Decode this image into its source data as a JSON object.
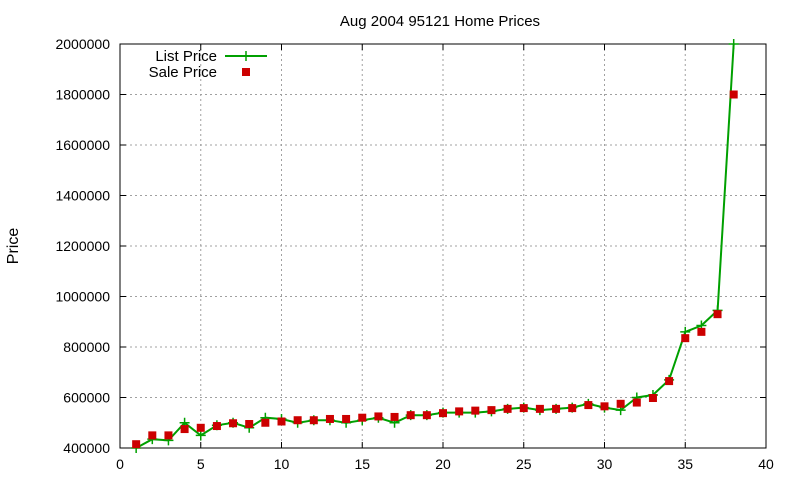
{
  "chart_data": {
    "type": "line",
    "title": "Aug 2004 95121 Home Prices",
    "xlabel": "",
    "ylabel": "Price",
    "xlim": [
      0,
      40
    ],
    "ylim": [
      400000,
      2000000
    ],
    "xticks": [
      0,
      5,
      10,
      15,
      20,
      25,
      30,
      35,
      40
    ],
    "yticks": [
      400000,
      600000,
      800000,
      1000000,
      1200000,
      1400000,
      1600000,
      1800000,
      2000000
    ],
    "grid": true,
    "legend_position": "top-left",
    "series": [
      {
        "name": "List Price",
        "style": "line-points",
        "marker": "plus",
        "color": "#00a000",
        "x": [
          1,
          2,
          3,
          4,
          5,
          6,
          7,
          8,
          9,
          10,
          11,
          12,
          13,
          14,
          15,
          16,
          17,
          18,
          19,
          20,
          21,
          22,
          23,
          24,
          25,
          26,
          27,
          28,
          29,
          30,
          31,
          32,
          33,
          34,
          35,
          36,
          37,
          38
        ],
        "values": [
          400000,
          435000,
          430000,
          500000,
          450000,
          490000,
          500000,
          480000,
          520000,
          515000,
          500000,
          510000,
          510000,
          500000,
          510000,
          520000,
          500000,
          530000,
          530000,
          540000,
          540000,
          540000,
          545000,
          555000,
          560000,
          550000,
          555000,
          560000,
          575000,
          560000,
          550000,
          600000,
          610000,
          670000,
          860000,
          885000,
          945000,
          2000000
        ]
      },
      {
        "name": "Sale Price",
        "style": "points",
        "marker": "square",
        "color": "#cc0000",
        "x": [
          1,
          2,
          3,
          4,
          5,
          6,
          7,
          8,
          9,
          10,
          11,
          12,
          13,
          14,
          15,
          16,
          17,
          18,
          19,
          20,
          21,
          22,
          23,
          24,
          25,
          26,
          27,
          28,
          29,
          30,
          31,
          32,
          33,
          34,
          35,
          36,
          37,
          38
        ],
        "values": [
          415000,
          450000,
          450000,
          475000,
          480000,
          487000,
          498000,
          495000,
          500000,
          505000,
          510000,
          510000,
          515000,
          515000,
          520000,
          525000,
          523000,
          530000,
          530000,
          538000,
          545000,
          548000,
          550000,
          555000,
          558000,
          555000,
          555000,
          558000,
          570000,
          565000,
          575000,
          580000,
          598000,
          665000,
          835000,
          860000,
          930000,
          1800000
        ]
      }
    ]
  }
}
